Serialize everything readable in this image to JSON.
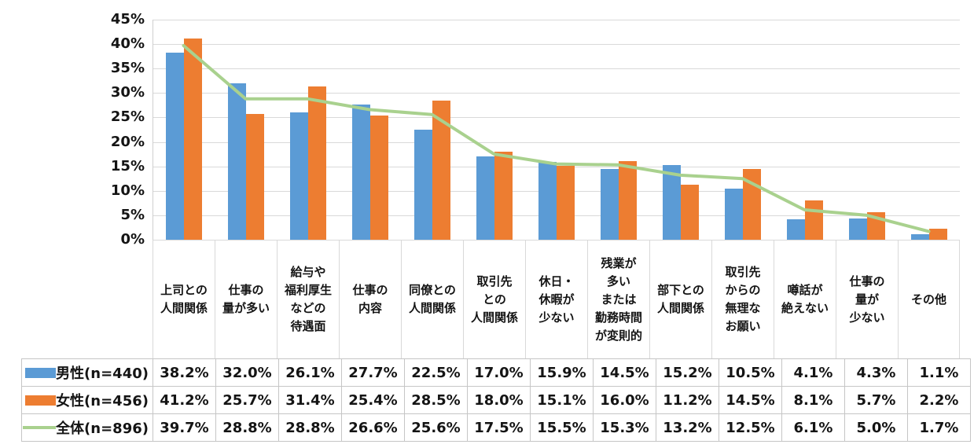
{
  "chart_data": {
    "type": "bar",
    "subtype": "grouped-bars-with-line-overlay",
    "title": "",
    "ylabel": "",
    "xlabel": "",
    "ylim": [
      0,
      45
    ],
    "grid": true,
    "legend_position": "table-left",
    "y_axis_ticks": [
      "45%",
      "40%",
      "35%",
      "30%",
      "25%",
      "20%",
      "15%",
      "10%",
      "5%",
      "0%"
    ],
    "categories": [
      {
        "label": "上司との人間関係",
        "lines": [
          "上司との",
          "人間関係"
        ]
      },
      {
        "label": "仕事の量が多い",
        "lines": [
          "仕事の",
          "量が多い"
        ]
      },
      {
        "label": "給与や福利厚生などの待遇面",
        "lines": [
          "給与や",
          "福利厚生",
          "などの",
          "待遇面"
        ]
      },
      {
        "label": "仕事の内容",
        "lines": [
          "仕事の",
          "内容"
        ]
      },
      {
        "label": "同僚との人間関係",
        "lines": [
          "同僚との",
          "人間関係"
        ]
      },
      {
        "label": "取引先との人間関係",
        "lines": [
          "取引先",
          "との",
          "人間関係"
        ]
      },
      {
        "label": "休日・休暇が少ない",
        "lines": [
          "休日・",
          "休暇が",
          "少ない"
        ]
      },
      {
        "label": "残業が多いまたは勤務時間が変則的",
        "lines": [
          "残業が",
          "多い",
          "または",
          "勤務時間",
          "が変則的"
        ]
      },
      {
        "label": "部下との人間関係",
        "lines": [
          "部下との",
          "人間関係"
        ]
      },
      {
        "label": "取引先からの無理なお願い",
        "lines": [
          "取引先",
          "からの",
          "無理な",
          "お願い"
        ]
      },
      {
        "label": "噂話が絶えない",
        "lines": [
          "噂話が",
          "絶えない"
        ]
      },
      {
        "label": "仕事の量が少ない",
        "lines": [
          "仕事の",
          "量が",
          "少ない"
        ]
      },
      {
        "label": "その他",
        "lines": [
          "その他"
        ]
      }
    ],
    "series": [
      {
        "id": "male",
        "name": "男性(n=440)",
        "type": "bar",
        "color": "#5B9BD5",
        "values": [
          38.2,
          32.0,
          26.1,
          27.7,
          22.5,
          17.0,
          15.9,
          14.5,
          15.2,
          10.5,
          4.1,
          4.3,
          1.1
        ]
      },
      {
        "id": "female",
        "name": "女性(n=456)",
        "type": "bar",
        "color": "#ED7D31",
        "values": [
          41.2,
          25.7,
          31.4,
          25.4,
          28.5,
          18.0,
          15.1,
          16.0,
          11.2,
          14.5,
          8.1,
          5.7,
          2.2
        ]
      },
      {
        "id": "total",
        "name": "全体(n=896)",
        "type": "line",
        "color": "#A9D18E",
        "values": [
          39.7,
          28.8,
          28.8,
          26.6,
          25.6,
          17.5,
          15.5,
          15.3,
          13.2,
          12.5,
          6.1,
          5.0,
          1.7
        ]
      }
    ],
    "colors": {
      "male_bar": "#5B9BD5",
      "female_bar": "#ED7D31",
      "total_line": "#A9D18E",
      "gridline": "#D9D9D9",
      "table_border": "#C6C6C6",
      "text": "#141414"
    }
  }
}
